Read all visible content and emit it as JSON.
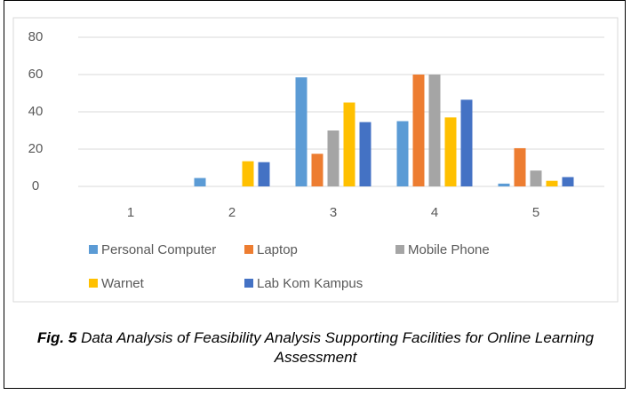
{
  "chart_data": {
    "type": "bar",
    "categories": [
      "1",
      "2",
      "3",
      "4",
      "5"
    ],
    "series": [
      {
        "name": "Personal Computer",
        "color": "#5b9bd5",
        "values": [
          0,
          4.5,
          58.5,
          35,
          1.5
        ]
      },
      {
        "name": "Laptop",
        "color": "#ed7d31",
        "values": [
          0,
          0,
          17.5,
          60,
          20.5
        ]
      },
      {
        "name": "Mobile Phone",
        "color": "#a5a5a5",
        "values": [
          0,
          0,
          30,
          60,
          8.5
        ]
      },
      {
        "name": "Warnet",
        "color": "#ffc000",
        "values": [
          0,
          13.5,
          45,
          37,
          3
        ]
      },
      {
        "name": "Lab Kom Kampus",
        "color": "#4472c4",
        "values": [
          0,
          13,
          34.5,
          46.5,
          5
        ]
      }
    ],
    "ylim": [
      0,
      80
    ],
    "yticks": [
      0,
      20,
      40,
      60,
      80
    ],
    "grid": true,
    "legend": "bottom",
    "caption_label": "Fig. 5",
    "caption": "Data Analysis of Feasibility Analysis Supporting Facilities for Online Learning Assessment"
  }
}
